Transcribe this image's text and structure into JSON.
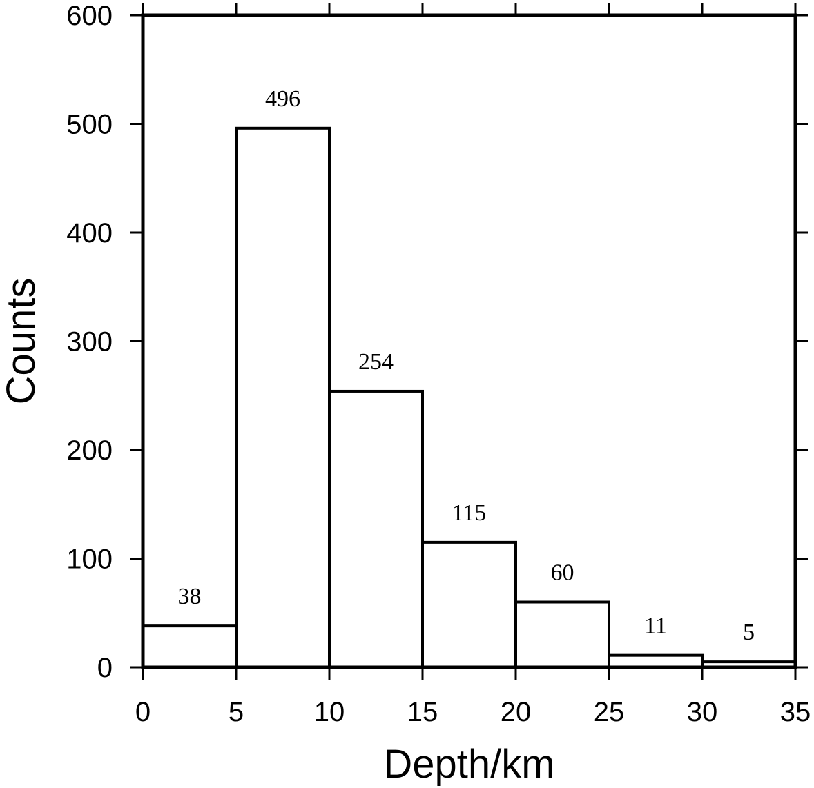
{
  "chart_data": {
    "type": "bar",
    "title": "",
    "xlabel": "Depth/km",
    "ylabel": "Counts",
    "bins": [
      {
        "x0": 0,
        "x1": 5,
        "count": 38,
        "label": "38"
      },
      {
        "x0": 5,
        "x1": 10,
        "count": 496,
        "label": "496"
      },
      {
        "x0": 10,
        "x1": 15,
        "count": 254,
        "label": "254"
      },
      {
        "x0": 15,
        "x1": 20,
        "count": 115,
        "label": "115"
      },
      {
        "x0": 20,
        "x1": 25,
        "count": 60,
        "label": "60"
      },
      {
        "x0": 25,
        "x1": 30,
        "count": 11,
        "label": "11"
      },
      {
        "x0": 30,
        "x1": 35,
        "count": 5,
        "label": "5"
      }
    ],
    "xlim": [
      0,
      35
    ],
    "ylim": [
      0,
      600
    ],
    "x_ticks": [
      0,
      5,
      10,
      15,
      20,
      25,
      30,
      35
    ],
    "x_tick_labels": [
      "0",
      "5",
      "10",
      "15",
      "20",
      "25",
      "30",
      "35"
    ],
    "y_ticks": [
      0,
      100,
      200,
      300,
      400,
      500,
      600
    ],
    "y_tick_labels": [
      "0",
      "100",
      "200",
      "300",
      "400",
      "500",
      "600"
    ],
    "grid": false,
    "bar_fill": "#ffffff",
    "bar_stroke": "#000000"
  }
}
